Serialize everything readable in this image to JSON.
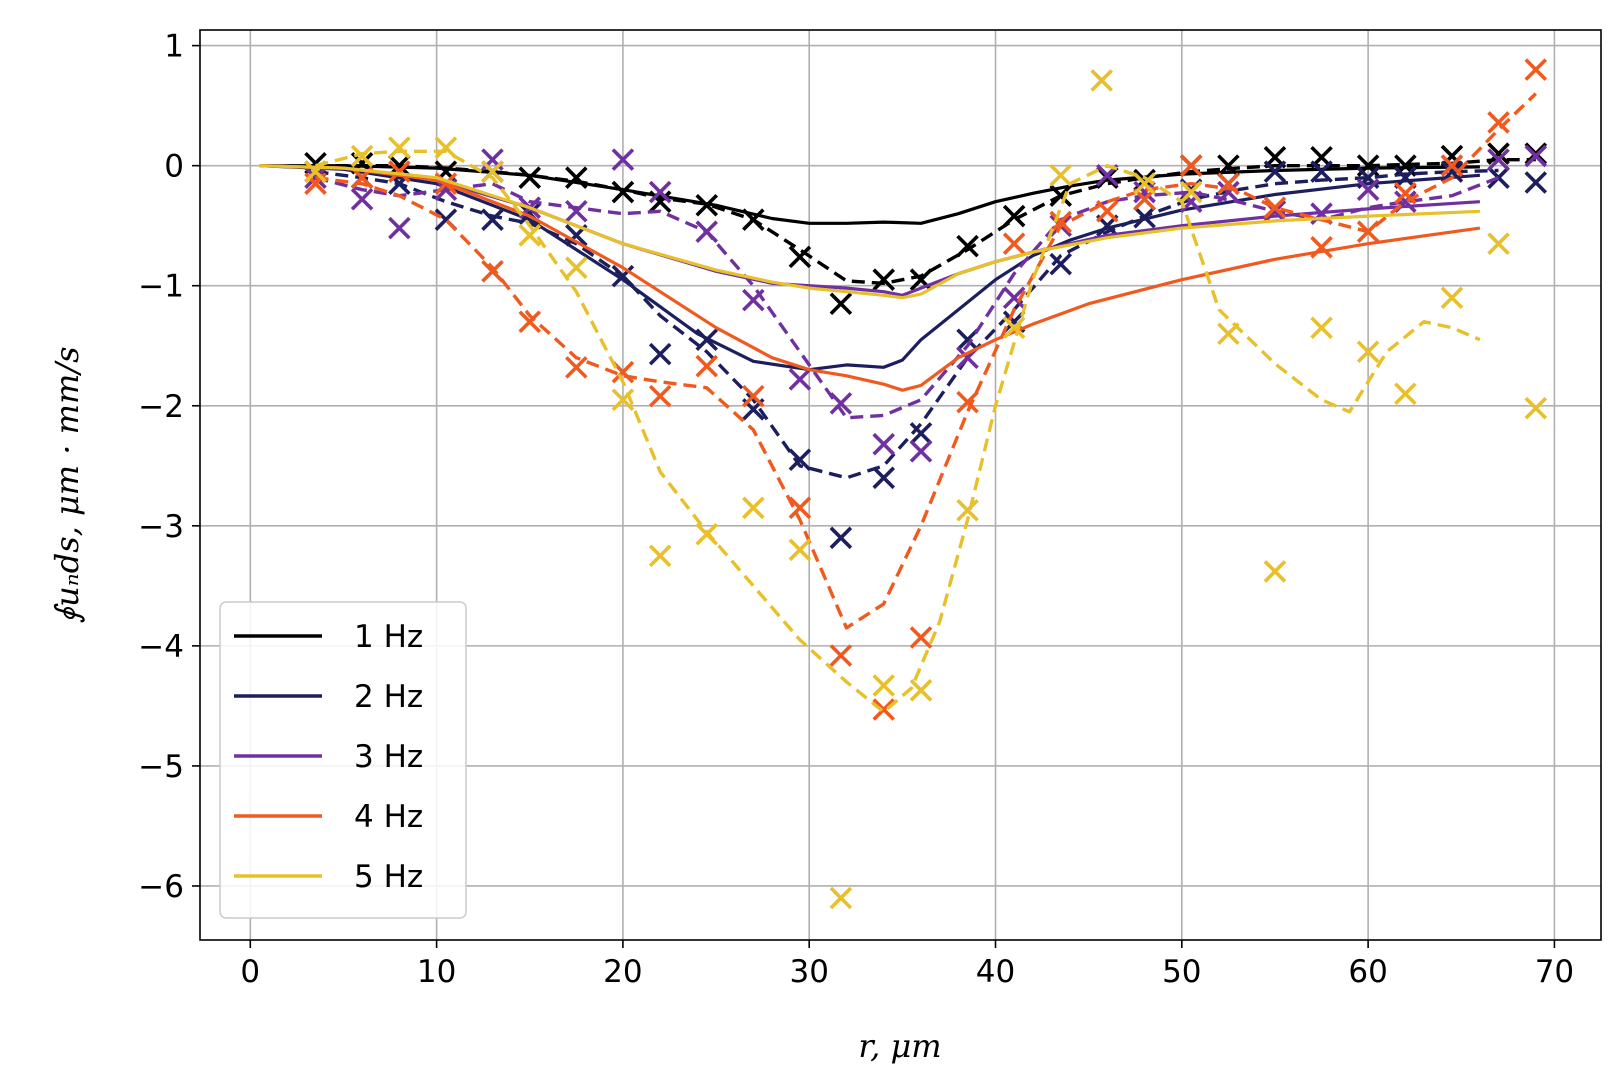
{
  "chart_data": {
    "type": "line",
    "title": "",
    "xlabel": "r, μm",
    "ylabel": "∮uₙds, μm · mm/s",
    "xlim": [
      -2.7,
      72.5
    ],
    "ylim": [
      -6.45,
      1.13
    ],
    "xticks": [
      0,
      10,
      20,
      30,
      40,
      50,
      60,
      70
    ],
    "yticks": [
      1,
      0,
      -1,
      -2,
      -3,
      -4,
      -5,
      -6
    ],
    "xtick_labels": [
      "0",
      "10",
      "20",
      "30",
      "40",
      "50",
      "60",
      "70"
    ],
    "ytick_labels": [
      "1",
      "0",
      "−1",
      "−2",
      "−3",
      "−4",
      "−5",
      "−6"
    ],
    "grid": true,
    "legend_position": "lower-left",
    "series": [
      {
        "name": "1 Hz",
        "color": "#000000",
        "solid": {
          "x": [
            0.5,
            5,
            10,
            15,
            20,
            25,
            28,
            30,
            32,
            34,
            36,
            38,
            40,
            42,
            44,
            46,
            50,
            55,
            60,
            66
          ],
          "y": [
            0,
            0,
            -0.02,
            -0.08,
            -0.2,
            -0.33,
            -0.44,
            -0.48,
            -0.48,
            -0.47,
            -0.48,
            -0.4,
            -0.3,
            -0.23,
            -0.17,
            -0.12,
            -0.07,
            -0.04,
            -0.02,
            -0.01
          ]
        },
        "dashed": {
          "x": [
            3.5,
            6,
            8,
            10.5,
            13,
            15,
            17.5,
            20,
            22,
            24.5,
            27,
            29.5,
            32,
            34,
            36,
            38.5,
            41,
            43.5,
            46,
            48,
            50.5,
            53,
            55,
            57.5,
            60,
            62,
            64.5,
            67,
            69
          ],
          "y": [
            0,
            0,
            0,
            -0.02,
            -0.05,
            -0.08,
            -0.13,
            -0.2,
            -0.27,
            -0.32,
            -0.45,
            -0.7,
            -0.96,
            -0.98,
            -0.92,
            -0.7,
            -0.45,
            -0.25,
            -0.15,
            -0.1,
            -0.05,
            -0.02,
            0,
            0,
            0,
            0.01,
            0.02,
            0.05,
            0.05
          ]
        },
        "markers": {
          "x": [
            3.5,
            6,
            8,
            10.5,
            13,
            15,
            17.5,
            20,
            22,
            24.5,
            27,
            29.5,
            31.7,
            34,
            36,
            38.5,
            41,
            43.5,
            46,
            48,
            50.5,
            52.5,
            55,
            57.5,
            60,
            62,
            64.5,
            67,
            69
          ],
          "y": [
            0.02,
            0.02,
            0,
            -0.05,
            -0.05,
            -0.1,
            -0.1,
            -0.22,
            -0.3,
            -0.33,
            -0.45,
            -0.76,
            -1.15,
            -0.95,
            -0.95,
            -0.67,
            -0.42,
            -0.25,
            -0.1,
            -0.12,
            0,
            0,
            0.07,
            0.07,
            0,
            0,
            0.08,
            0.1,
            0.1
          ]
        }
      },
      {
        "name": "2 Hz",
        "color": "#1c1e5e",
        "solid": {
          "x": [
            0.5,
            5,
            10,
            15,
            20,
            24,
            27,
            30,
            32,
            34,
            35,
            36,
            38,
            40,
            42,
            44,
            46,
            50,
            55,
            60,
            66
          ],
          "y": [
            0,
            -0.03,
            -0.15,
            -0.45,
            -0.95,
            -1.4,
            -1.63,
            -1.7,
            -1.66,
            -1.68,
            -1.62,
            -1.45,
            -1.2,
            -0.95,
            -0.75,
            -0.62,
            -0.52,
            -0.37,
            -0.24,
            -0.15,
            -0.08
          ]
        },
        "dashed": {
          "x": [
            3.5,
            6,
            8,
            10.5,
            13,
            15,
            17.5,
            20,
            22,
            24.5,
            27,
            29.5,
            32,
            34,
            36,
            38.5,
            41,
            43.5,
            46,
            48,
            50.5,
            53,
            55,
            57.5,
            60,
            62,
            64.5,
            67
          ],
          "y": [
            -0.05,
            -0.1,
            -0.15,
            -0.3,
            -0.42,
            -0.48,
            -0.65,
            -0.92,
            -1.25,
            -1.55,
            -1.95,
            -2.5,
            -2.6,
            -2.5,
            -2.15,
            -1.6,
            -1.2,
            -0.75,
            -0.55,
            -0.42,
            -0.28,
            -0.2,
            -0.15,
            -0.12,
            -0.1,
            -0.07,
            -0.05,
            -0.04
          ]
        },
        "markers": {
          "x": [
            3.5,
            6,
            8,
            10.5,
            13,
            15,
            17.5,
            20,
            22,
            24.5,
            27,
            29.5,
            31.7,
            34,
            36,
            38.5,
            41,
            43.5,
            46,
            48,
            50.5,
            52.5,
            55,
            57.5,
            60,
            62,
            64.5,
            67,
            69
          ],
          "y": [
            -0.05,
            -0.1,
            -0.15,
            -0.45,
            -0.45,
            -0.4,
            -0.58,
            -0.92,
            -1.57,
            -1.45,
            -2.03,
            -2.45,
            -3.1,
            -2.6,
            -2.23,
            -1.45,
            -1.3,
            -0.82,
            -0.5,
            -0.43,
            -0.2,
            -0.15,
            -0.05,
            -0.05,
            -0.1,
            -0.1,
            -0.05,
            -0.1,
            -0.14
          ]
        }
      },
      {
        "name": "3 Hz",
        "color": "#7030a0",
        "solid": {
          "x": [
            0.5,
            5,
            10,
            15,
            20,
            25,
            28,
            30,
            32,
            34,
            35,
            36,
            38,
            40,
            42,
            44,
            46,
            50,
            55,
            60,
            66
          ],
          "y": [
            0,
            -0.02,
            -0.12,
            -0.35,
            -0.65,
            -0.88,
            -0.98,
            -1.0,
            -1.02,
            -1.05,
            -1.08,
            -1.02,
            -0.9,
            -0.8,
            -0.72,
            -0.65,
            -0.58,
            -0.5,
            -0.42,
            -0.36,
            -0.3
          ]
        },
        "dashed": {
          "x": [
            3.5,
            6,
            8,
            10.5,
            13,
            15,
            17.5,
            20,
            22,
            24.5,
            27,
            29.5,
            32,
            34,
            36,
            38.5,
            41,
            43.5,
            46,
            48,
            50.5,
            53,
            55,
            57.5,
            60,
            62,
            64.5,
            67
          ],
          "y": [
            -0.1,
            -0.2,
            -0.25,
            -0.2,
            -0.15,
            -0.3,
            -0.35,
            -0.4,
            -0.38,
            -0.55,
            -1.0,
            -1.55,
            -2.1,
            -2.08,
            -1.95,
            -1.5,
            -0.9,
            -0.45,
            -0.3,
            -0.25,
            -0.22,
            -0.3,
            -0.38,
            -0.45,
            -0.35,
            -0.3,
            -0.25,
            -0.1
          ]
        },
        "markers": {
          "x": [
            3.5,
            6,
            8,
            10.5,
            13,
            15,
            17.5,
            20,
            22,
            24.5,
            27,
            29.5,
            31.7,
            34,
            36,
            38.5,
            41,
            43.5,
            46,
            48,
            50.5,
            52.5,
            55,
            57.5,
            60,
            62,
            64.5,
            67,
            69
          ],
          "y": [
            -0.1,
            -0.28,
            -0.52,
            -0.2,
            0.05,
            -0.35,
            -0.38,
            0.05,
            -0.22,
            -0.55,
            -1.12,
            -1.78,
            -1.98,
            -2.32,
            -2.38,
            -1.6,
            -1.1,
            -0.5,
            -0.08,
            -0.22,
            -0.3,
            -0.22,
            -0.38,
            -0.4,
            -0.2,
            -0.3,
            0,
            0.05,
            0.08
          ]
        }
      },
      {
        "name": "4 Hz",
        "color": "#f05a1e",
        "solid": {
          "x": [
            0.5,
            5,
            10,
            15,
            20,
            25,
            28,
            30,
            32,
            34,
            35,
            36,
            38,
            40,
            42,
            45,
            50,
            55,
            60,
            66
          ],
          "y": [
            0,
            -0.02,
            -0.12,
            -0.42,
            -0.85,
            -1.35,
            -1.6,
            -1.7,
            -1.75,
            -1.82,
            -1.87,
            -1.83,
            -1.6,
            -1.45,
            -1.32,
            -1.15,
            -0.95,
            -0.78,
            -0.65,
            -0.52
          ]
        },
        "dashed": {
          "x": [
            3.5,
            6,
            8,
            10.5,
            13,
            15,
            17.5,
            20,
            22,
            24.5,
            27,
            29.5,
            32,
            34,
            36,
            38.5,
            41,
            43.5,
            46,
            48,
            50.5,
            53,
            55,
            57.5,
            60,
            62,
            64.5,
            67,
            69
          ],
          "y": [
            -0.1,
            -0.15,
            -0.25,
            -0.45,
            -0.85,
            -1.25,
            -1.6,
            -1.75,
            -1.8,
            -1.85,
            -2.2,
            -2.95,
            -3.85,
            -3.65,
            -3.0,
            -2.05,
            -1.2,
            -0.5,
            -0.3,
            -0.2,
            -0.15,
            -0.2,
            -0.35,
            -0.45,
            -0.55,
            -0.3,
            -0.1,
            0.3,
            0.6
          ]
        },
        "markers": {
          "x": [
            3.5,
            6,
            8,
            10.5,
            13,
            15,
            17.5,
            20,
            22,
            24.5,
            27,
            29.5,
            31.7,
            34,
            36,
            38.5,
            41,
            43.5,
            46,
            48,
            50.5,
            52.5,
            55,
            57.5,
            60,
            62,
            64.5,
            67,
            69
          ],
          "y": [
            -0.15,
            -0.1,
            -0.05,
            -0.15,
            -0.88,
            -1.3,
            -1.68,
            -1.72,
            -1.92,
            -1.67,
            -1.92,
            -2.85,
            -4.08,
            -4.53,
            -3.93,
            -1.97,
            -0.65,
            -0.47,
            -0.38,
            -0.28,
            0,
            -0.15,
            -0.35,
            -0.68,
            -0.55,
            -0.23,
            0,
            0.36,
            0.8
          ]
        }
      },
      {
        "name": "5 Hz",
        "color": "#e8c02c",
        "solid": {
          "x": [
            0.5,
            5,
            10,
            15,
            20,
            25,
            28,
            30,
            32,
            34,
            35,
            36,
            38,
            40,
            42,
            44,
            46,
            50,
            55,
            60,
            66
          ],
          "y": [
            0,
            -0.02,
            -0.1,
            -0.35,
            -0.65,
            -0.87,
            -0.97,
            -1.02,
            -1.05,
            -1.08,
            -1.1,
            -1.07,
            -0.9,
            -0.8,
            -0.72,
            -0.66,
            -0.6,
            -0.52,
            -0.46,
            -0.42,
            -0.38
          ]
        },
        "dashed": {
          "x": [
            3.5,
            6,
            8,
            10.5,
            13,
            15,
            17.5,
            20,
            22,
            24.5,
            27,
            29.5,
            32,
            34,
            35.5,
            37,
            38.5,
            40,
            42,
            44,
            46,
            48,
            50,
            52,
            55,
            57.5,
            59,
            61,
            63,
            64.5,
            66
          ],
          "y": [
            0,
            0.1,
            0.12,
            0.12,
            -0.1,
            -0.5,
            -1.05,
            -1.8,
            -2.55,
            -3.05,
            -3.5,
            -3.95,
            -4.3,
            -4.55,
            -4.35,
            -3.8,
            -2.95,
            -2.0,
            -0.95,
            -0.15,
            0,
            -0.1,
            -0.3,
            -1.2,
            -1.65,
            -1.95,
            -2.05,
            -1.55,
            -1.3,
            -1.35,
            -1.45
          ]
        },
        "markers": {
          "x": [
            3.5,
            6,
            8,
            10.5,
            13,
            15,
            17.5,
            20,
            22,
            24.5,
            27,
            29.5,
            31.7,
            34,
            36,
            38.5,
            41,
            43.5,
            45.7,
            48,
            50.5,
            52.5,
            55,
            57.5,
            60,
            62,
            64.5,
            67,
            69
          ],
          "y": [
            -0.05,
            0.08,
            0.15,
            0.15,
            -0.05,
            -0.58,
            -0.85,
            -1.95,
            -3.25,
            -3.07,
            -2.85,
            -3.2,
            -6.1,
            -4.33,
            -4.37,
            -2.87,
            -1.35,
            -0.08,
            0.71,
            -0.15,
            -0.22,
            -1.4,
            -3.38,
            -1.35,
            -1.55,
            -1.9,
            -1.1,
            -0.65,
            -2.02
          ]
        }
      }
    ]
  }
}
